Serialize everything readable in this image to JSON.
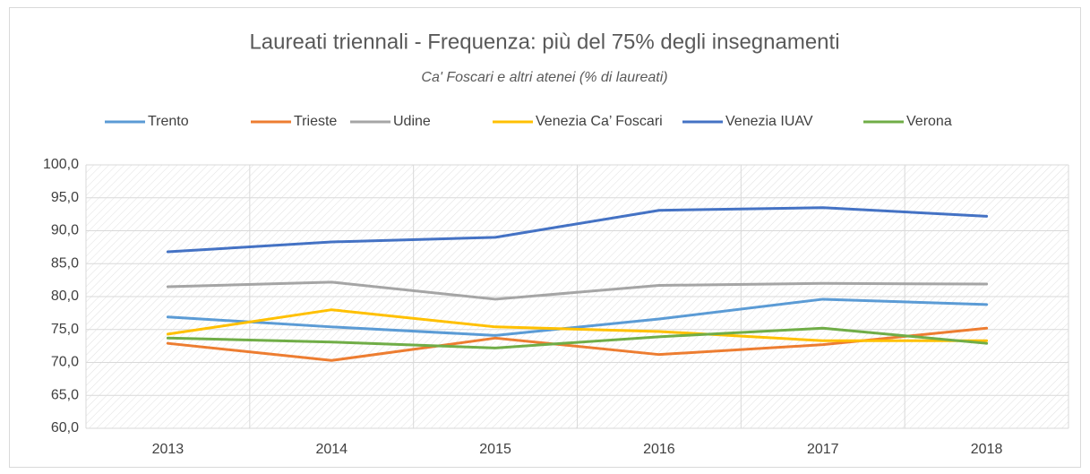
{
  "chart_data": {
    "type": "line",
    "title": "Laureati triennali - Frequenza: più del 75% degli insegnamenti",
    "subtitle": "Ca' Foscari e altri atenei (% di laureati)",
    "categories": [
      "2013",
      "2014",
      "2015",
      "2016",
      "2017",
      "2018"
    ],
    "series": [
      {
        "name": "Trento",
        "color": "#5b9bd5",
        "values": [
          76.9,
          75.4,
          74.1,
          76.6,
          79.6,
          78.8
        ]
      },
      {
        "name": "Trieste",
        "color": "#ed7d31",
        "values": [
          72.9,
          70.3,
          73.7,
          71.2,
          72.7,
          75.2
        ]
      },
      {
        "name": "Udine",
        "color": "#a5a5a5",
        "values": [
          81.5,
          82.2,
          79.6,
          81.7,
          82.0,
          81.9
        ]
      },
      {
        "name": "Venezia Ca’ Foscari",
        "color": "#ffc000",
        "values": [
          74.3,
          78.0,
          75.4,
          74.7,
          73.3,
          73.3
        ]
      },
      {
        "name": "Venezia IUAV",
        "color": "#4472c4",
        "values": [
          86.8,
          88.3,
          89.0,
          93.1,
          93.5,
          92.2
        ]
      },
      {
        "name": "Verona",
        "color": "#70ad47",
        "values": [
          73.7,
          73.1,
          72.2,
          73.9,
          75.2,
          72.9
        ]
      }
    ],
    "ylim": [
      60,
      100
    ],
    "yticks": [
      {
        "value": 60,
        "label": "60,0"
      },
      {
        "value": 65,
        "label": "65,0"
      },
      {
        "value": 70,
        "label": "70,0"
      },
      {
        "value": 75,
        "label": "75,0"
      },
      {
        "value": 80,
        "label": "80,0"
      },
      {
        "value": 85,
        "label": "85,0"
      },
      {
        "value": 90,
        "label": "90,0"
      },
      {
        "value": 95,
        "label": "95,0"
      },
      {
        "value": 100,
        "label": "100,0"
      }
    ],
    "grid": true,
    "legend": "top"
  }
}
